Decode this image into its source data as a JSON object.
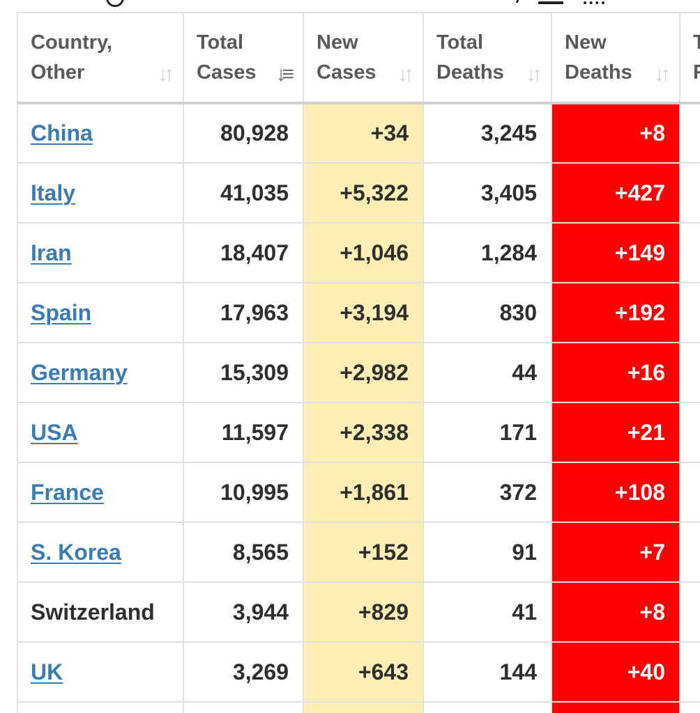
{
  "colors": {
    "link": "#3a7bb2",
    "new_cases_bg": "#fdeeb6",
    "new_deaths_bg": "#ff0000",
    "header_text": "#595959",
    "sort_icon_inactive": "#d0d0d0"
  },
  "headers": [
    {
      "label": "Country,\nOther",
      "sort_icon": "sort-both-icon",
      "active": false
    },
    {
      "label": "Total\nCases",
      "sort_icon": "sort-descending-icon",
      "active": true
    },
    {
      "label": "New\nCases",
      "sort_icon": "sort-both-icon",
      "active": false
    },
    {
      "label": "Total\nDeaths",
      "sort_icon": "sort-both-icon",
      "active": false
    },
    {
      "label": "New\nDeaths",
      "sort_icon": "sort-both-icon",
      "active": false
    },
    {
      "label": "T\nR",
      "sort_icon": "",
      "active": false
    }
  ],
  "rows": [
    {
      "country": "China",
      "link": true,
      "total_cases": "80,928",
      "new_cases": "+34",
      "total_deaths": "3,245",
      "new_deaths": "+8"
    },
    {
      "country": "Italy",
      "link": true,
      "total_cases": "41,035",
      "new_cases": "+5,322",
      "total_deaths": "3,405",
      "new_deaths": "+427"
    },
    {
      "country": "Iran",
      "link": true,
      "total_cases": "18,407",
      "new_cases": "+1,046",
      "total_deaths": "1,284",
      "new_deaths": "+149"
    },
    {
      "country": "Spain",
      "link": true,
      "total_cases": "17,963",
      "new_cases": "+3,194",
      "total_deaths": "830",
      "new_deaths": "+192"
    },
    {
      "country": "Germany",
      "link": true,
      "total_cases": "15,309",
      "new_cases": "+2,982",
      "total_deaths": "44",
      "new_deaths": "+16"
    },
    {
      "country": "USA",
      "link": true,
      "total_cases": "11,597",
      "new_cases": "+2,338",
      "total_deaths": "171",
      "new_deaths": "+21"
    },
    {
      "country": "France",
      "link": true,
      "total_cases": "10,995",
      "new_cases": "+1,861",
      "total_deaths": "372",
      "new_deaths": "+108"
    },
    {
      "country": "S. Korea",
      "link": true,
      "total_cases": "8,565",
      "new_cases": "+152",
      "total_deaths": "91",
      "new_deaths": "+7"
    },
    {
      "country": "Switzerland",
      "link": false,
      "total_cases": "3,944",
      "new_cases": "+829",
      "total_deaths": "41",
      "new_deaths": "+8"
    },
    {
      "country": "UK",
      "link": true,
      "total_cases": "3,269",
      "new_cases": "+643",
      "total_deaths": "144",
      "new_deaths": "+40"
    }
  ]
}
